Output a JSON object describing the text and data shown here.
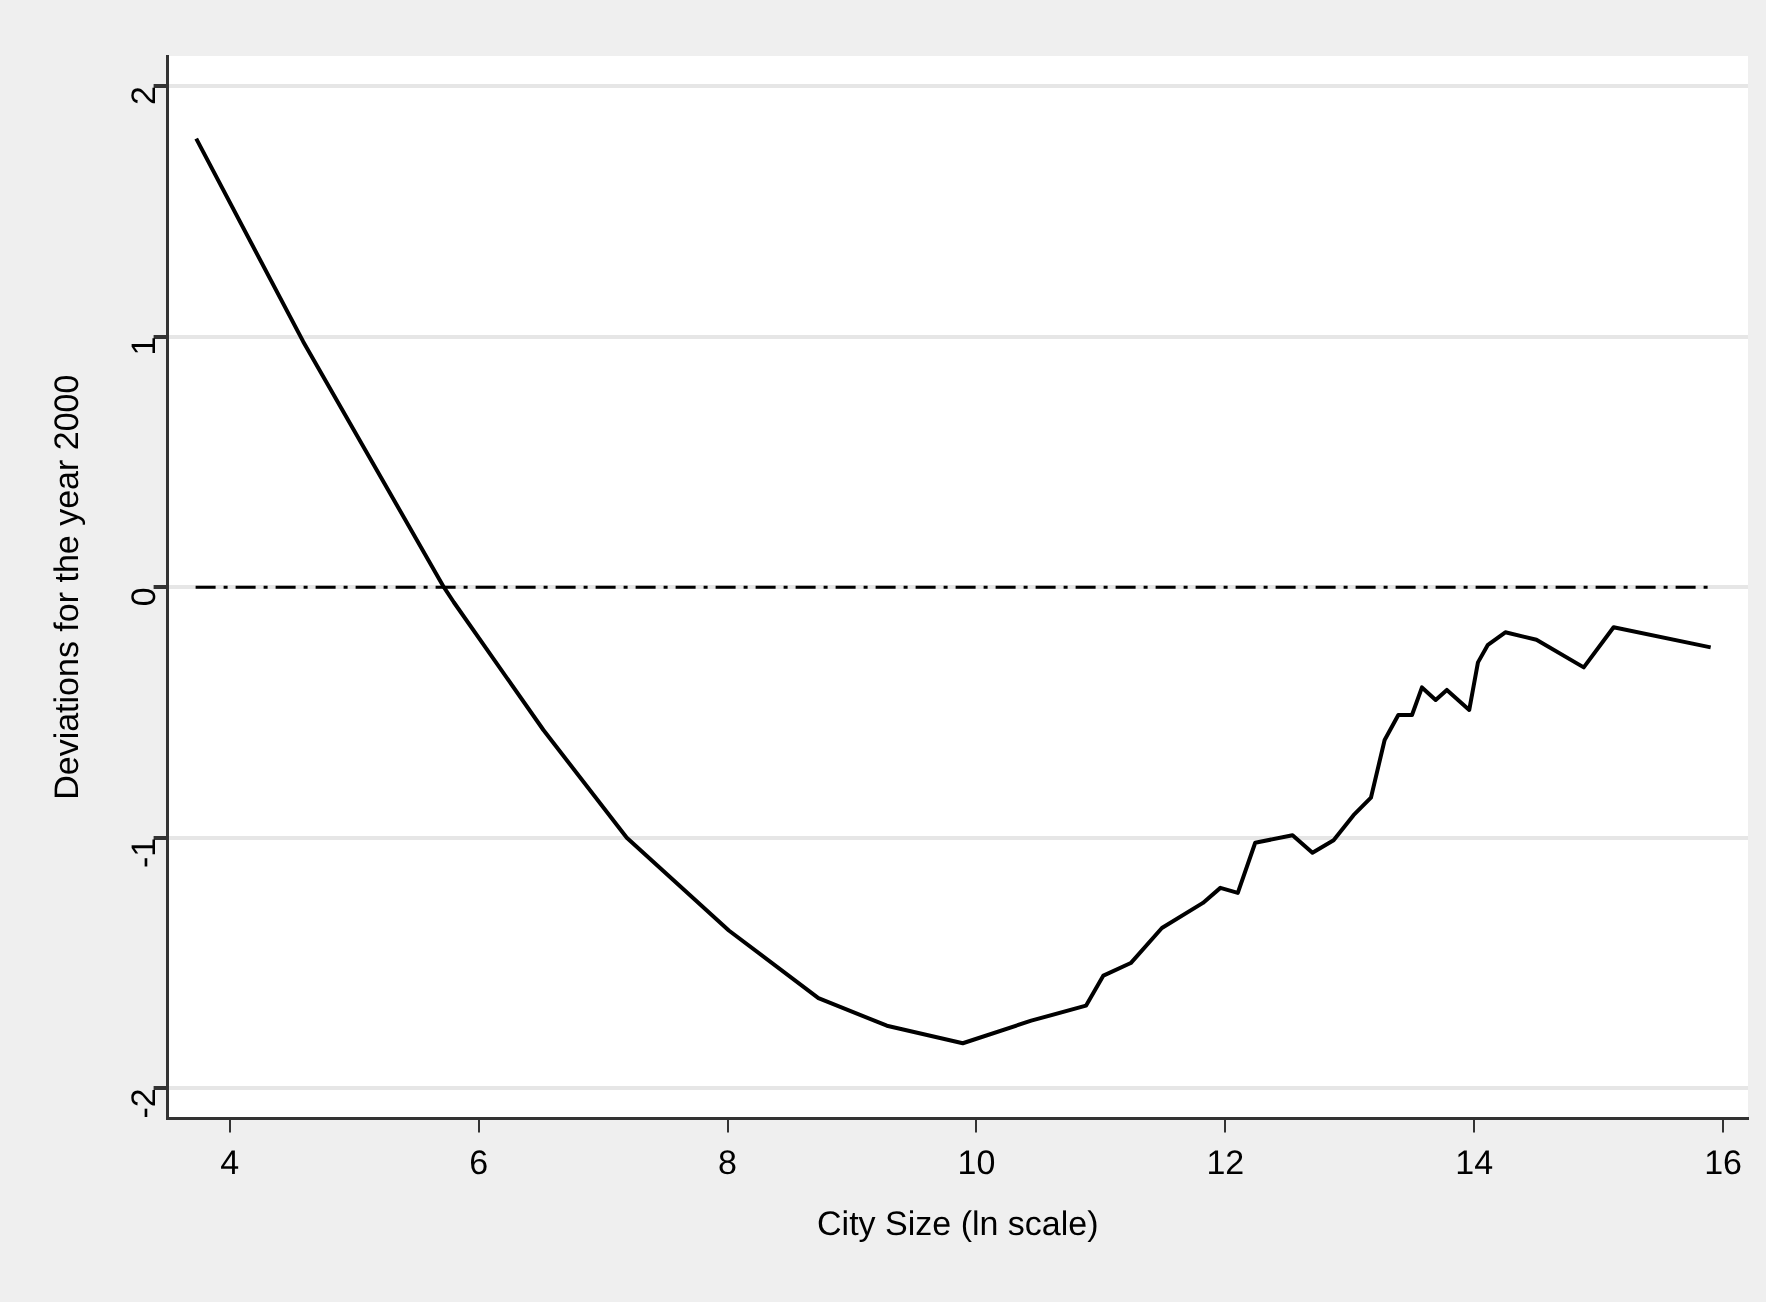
{
  "chart_data": {
    "type": "line",
    "xlabel": "City Size (ln scale)",
    "ylabel": "Deviations for the year 2000",
    "x": [
      3.73,
      4.59,
      5.72,
      5.8,
      6.52,
      7.19,
      8.01,
      8.73,
      9.28,
      9.89,
      10.44,
      10.88,
      11.02,
      11.24,
      11.49,
      11.82,
      11.96,
      12.1,
      12.24,
      12.54,
      12.7,
      12.87,
      13.03,
      13.17,
      13.28,
      13.39,
      13.5,
      13.58,
      13.69,
      13.78,
      13.96,
      14.03,
      14.11,
      14.25,
      14.5,
      14.88,
      15.12,
      15.9
    ],
    "series": [
      {
        "color": "#000000",
        "values": [
          1.79,
          0.98,
          0,
          -0.06,
          -0.57,
          -1.0,
          -1.37,
          -1.64,
          -1.75,
          -1.82,
          -1.73,
          -1.67,
          -1.55,
          -1.5,
          -1.36,
          -1.26,
          -1.2,
          -1.22,
          -1.02,
          -0.99,
          -1.06,
          -1.01,
          -0.91,
          -0.84,
          -0.61,
          -0.51,
          -0.51,
          -0.4,
          -0.45,
          -0.41,
          -0.49,
          -0.3,
          -0.23,
          -0.18,
          -0.21,
          -0.32,
          -0.16,
          -0.24
        ]
      }
    ],
    "xlim": [
      3.5,
      16.2
    ],
    "xticks": [
      4,
      6,
      8,
      10,
      12,
      14,
      16
    ],
    "ylim": [
      -2.12,
      2.12
    ],
    "yticks": [
      -2,
      -1,
      0,
      1,
      2
    ],
    "grid": "y",
    "legend": false,
    "marker": "none",
    "line_style": "solid",
    "ref_lines": [
      {
        "axis": "y",
        "value": 0,
        "line_style": "dashed",
        "color": "#000000"
      }
    ]
  }
}
